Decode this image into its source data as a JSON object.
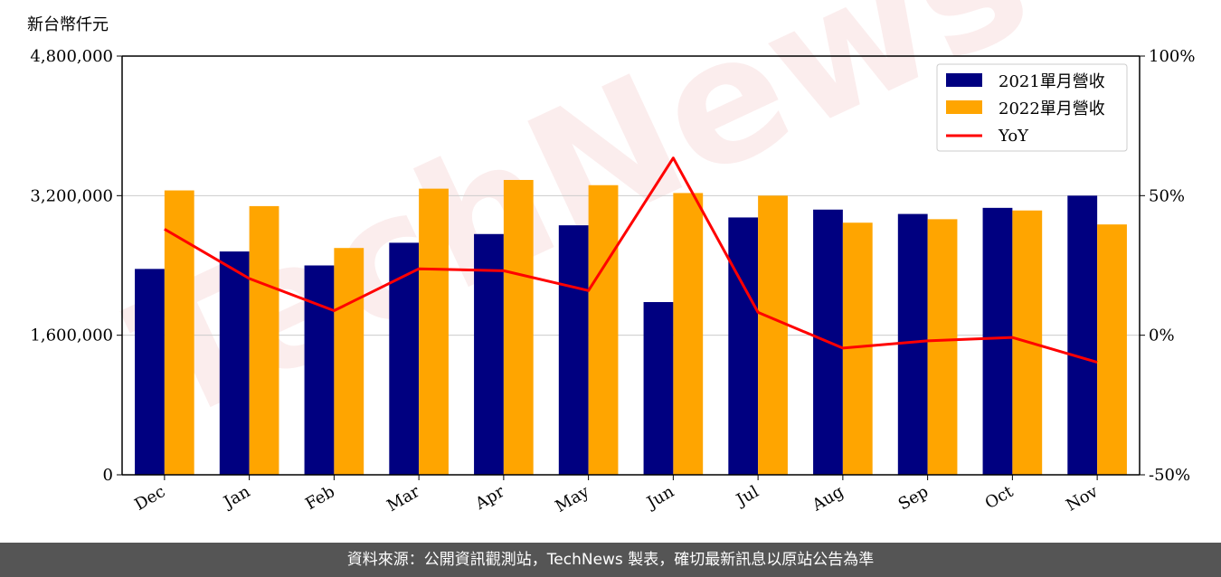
{
  "chart_data": {
    "type": "bar",
    "unit_label": "新台幣仟元",
    "categories": [
      "Dec",
      "Jan",
      "Feb",
      "Mar",
      "Apr",
      "May",
      "Jun",
      "Jul",
      "Aug",
      "Sep",
      "Oct",
      "Nov"
    ],
    "series": [
      {
        "name": "2021單月營收",
        "type": "bar",
        "axis": "left",
        "color": "#000080",
        "values": [
          2360000,
          2560000,
          2400000,
          2660000,
          2760000,
          2860000,
          1980000,
          2950000,
          3040000,
          2990000,
          3060000,
          3200000
        ]
      },
      {
        "name": "2022單月營收",
        "type": "bar",
        "axis": "left",
        "color": "#FFA500",
        "values": [
          3260000,
          3080000,
          2600000,
          3280000,
          3380000,
          3320000,
          3230000,
          3200000,
          2890000,
          2930000,
          3030000,
          2870000
        ]
      },
      {
        "name": "YoY",
        "type": "line",
        "axis": "right",
        "color": "#FF0000",
        "values": [
          38.0,
          20.3,
          8.8,
          23.8,
          23.1,
          16.0,
          63.5,
          8.2,
          -4.6,
          -2.0,
          -0.8,
          -9.7
        ]
      }
    ],
    "y_left": {
      "ylim": [
        0,
        4800000
      ],
      "ticks": [
        0,
        1600000,
        3200000,
        4800000
      ],
      "tick_labels": [
        "0",
        "1,600,000",
        "3,200,000",
        "4,800,000"
      ]
    },
    "y_right": {
      "ylim": [
        -50,
        100
      ],
      "ticks": [
        -50,
        0,
        50,
        100
      ],
      "tick_labels": [
        "-50%",
        "0%",
        "50%",
        "100%"
      ]
    },
    "grid": "horizontal",
    "legend_position": "top-right",
    "watermark": "TechNews"
  },
  "footer": {
    "text": "資料來源：公開資訊觀測站，TechNews 製表，確切最新訊息以原站公告為準"
  }
}
